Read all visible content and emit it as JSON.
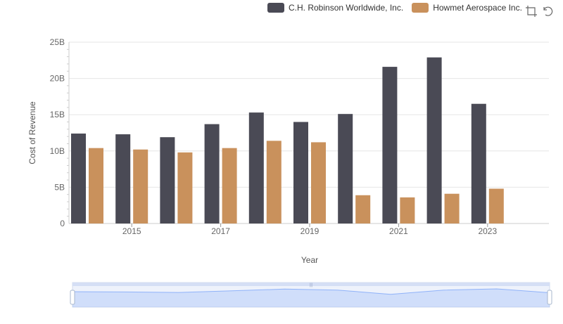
{
  "chart_data": {
    "type": "bar",
    "xlabel": "Year",
    "ylabel": "Cost of Revenue",
    "x": [
      2014,
      2015,
      2016,
      2017,
      2018,
      2019,
      2020,
      2021,
      2022,
      2023
    ],
    "x_tick_labels": [
      "2015",
      "2017",
      "2019",
      "2021",
      "2023"
    ],
    "y_ticks": [
      0,
      5,
      10,
      15,
      20,
      25
    ],
    "y_tick_labels": [
      "0",
      "5B",
      "10B",
      "15B",
      "20B",
      "25B"
    ],
    "ylim": [
      0,
      25
    ],
    "y_unit": "billions",
    "grid": true,
    "legend_position": "top-right",
    "series": [
      {
        "name": "C.H. Robinson Worldwide, Inc.",
        "color": "#4a4a55",
        "values": [
          12.4,
          12.3,
          11.9,
          13.7,
          15.3,
          14.0,
          15.1,
          21.6,
          22.9,
          16.5
        ]
      },
      {
        "name": "Howmet Aerospace Inc.",
        "color": "#c9915c",
        "values": [
          10.4,
          10.2,
          9.8,
          10.4,
          11.4,
          11.2,
          3.9,
          3.6,
          4.1,
          4.8
        ]
      }
    ]
  },
  "toolbox": {
    "icons": [
      "zoom-icon",
      "restore-icon"
    ]
  },
  "datazoom": {
    "range_start": 0,
    "range_end": 100,
    "overview_color": "#5b8ff9"
  }
}
